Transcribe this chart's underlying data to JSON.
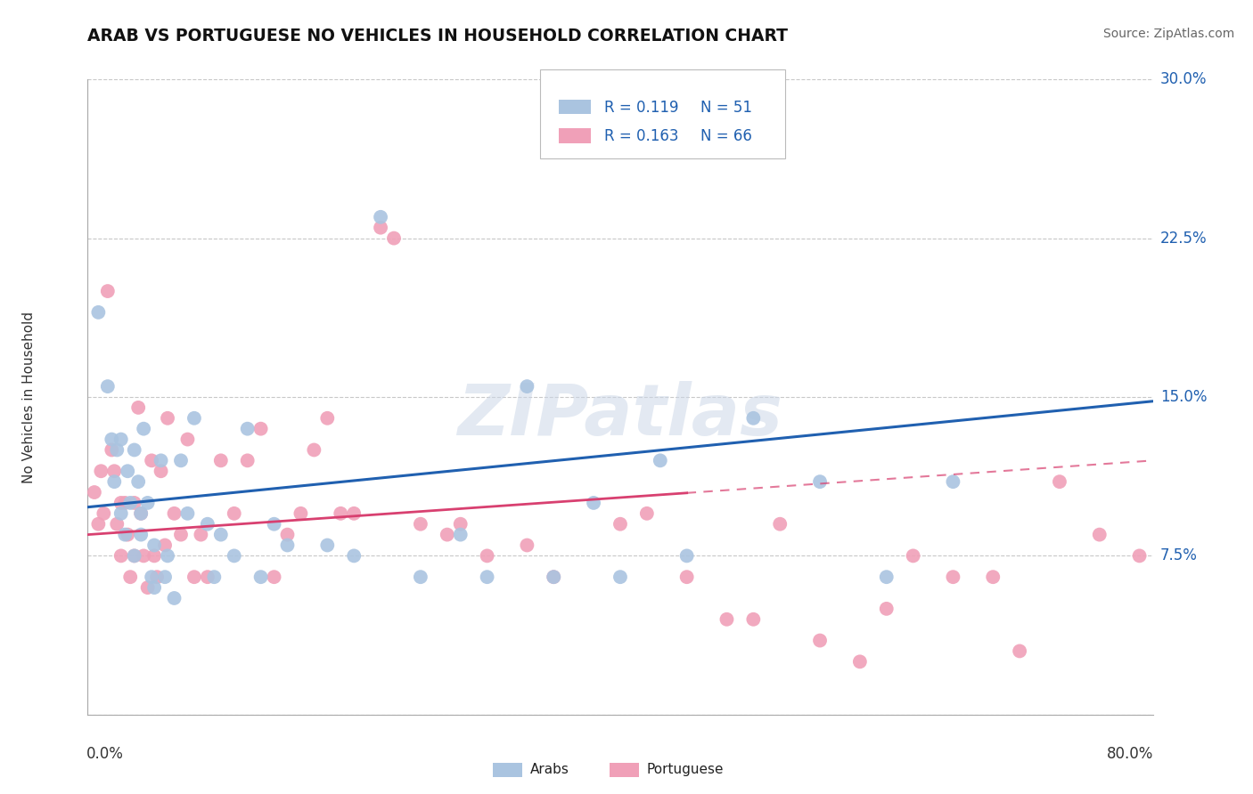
{
  "title": "ARAB VS PORTUGUESE NO VEHICLES IN HOUSEHOLD CORRELATION CHART",
  "source": "Source: ZipAtlas.com",
  "ylabel": "No Vehicles in Household",
  "xlabel_bottom_left": "0.0%",
  "xlabel_bottom_right": "80.0%",
  "xmin": 0.0,
  "xmax": 0.8,
  "ymin": 0.0,
  "ymax": 0.3,
  "yticks": [
    0.0,
    0.075,
    0.15,
    0.225,
    0.3
  ],
  "ytick_labels": [
    "",
    "7.5%",
    "15.0%",
    "22.5%",
    "30.0%"
  ],
  "legend_arab_R": "0.119",
  "legend_arab_N": "51",
  "legend_port_R": "0.163",
  "legend_port_N": "66",
  "arab_color": "#aac4e0",
  "port_color": "#f0a0b8",
  "arab_line_color": "#2060b0",
  "port_line_color": "#d84070",
  "watermark": "ZIPatlas",
  "background_color": "#ffffff",
  "grid_color": "#c8c8c8",
  "arab_x": [
    0.008,
    0.015,
    0.018,
    0.02,
    0.022,
    0.025,
    0.025,
    0.028,
    0.03,
    0.032,
    0.035,
    0.035,
    0.038,
    0.04,
    0.04,
    0.042,
    0.045,
    0.048,
    0.05,
    0.05,
    0.055,
    0.058,
    0.06,
    0.065,
    0.07,
    0.075,
    0.08,
    0.09,
    0.095,
    0.1,
    0.11,
    0.12,
    0.13,
    0.14,
    0.15,
    0.18,
    0.2,
    0.22,
    0.25,
    0.28,
    0.3,
    0.33,
    0.35,
    0.38,
    0.4,
    0.43,
    0.45,
    0.5,
    0.55,
    0.6,
    0.65
  ],
  "arab_y": [
    0.19,
    0.155,
    0.13,
    0.11,
    0.125,
    0.13,
    0.095,
    0.085,
    0.115,
    0.1,
    0.075,
    0.125,
    0.11,
    0.085,
    0.095,
    0.135,
    0.1,
    0.065,
    0.08,
    0.06,
    0.12,
    0.065,
    0.075,
    0.055,
    0.12,
    0.095,
    0.14,
    0.09,
    0.065,
    0.085,
    0.075,
    0.135,
    0.065,
    0.09,
    0.08,
    0.08,
    0.075,
    0.235,
    0.065,
    0.085,
    0.065,
    0.155,
    0.065,
    0.1,
    0.065,
    0.12,
    0.075,
    0.14,
    0.11,
    0.065,
    0.11
  ],
  "port_x": [
    0.005,
    0.008,
    0.01,
    0.012,
    0.015,
    0.018,
    0.02,
    0.022,
    0.025,
    0.025,
    0.028,
    0.03,
    0.032,
    0.035,
    0.035,
    0.038,
    0.04,
    0.042,
    0.045,
    0.048,
    0.05,
    0.052,
    0.055,
    0.058,
    0.06,
    0.065,
    0.07,
    0.075,
    0.08,
    0.085,
    0.09,
    0.1,
    0.11,
    0.12,
    0.13,
    0.14,
    0.15,
    0.16,
    0.17,
    0.18,
    0.19,
    0.2,
    0.22,
    0.23,
    0.25,
    0.27,
    0.28,
    0.3,
    0.33,
    0.35,
    0.4,
    0.42,
    0.45,
    0.48,
    0.5,
    0.52,
    0.55,
    0.58,
    0.6,
    0.62,
    0.65,
    0.68,
    0.7,
    0.73,
    0.76,
    0.79
  ],
  "port_y": [
    0.105,
    0.09,
    0.115,
    0.095,
    0.2,
    0.125,
    0.115,
    0.09,
    0.1,
    0.075,
    0.1,
    0.085,
    0.065,
    0.1,
    0.075,
    0.145,
    0.095,
    0.075,
    0.06,
    0.12,
    0.075,
    0.065,
    0.115,
    0.08,
    0.14,
    0.095,
    0.085,
    0.13,
    0.065,
    0.085,
    0.065,
    0.12,
    0.095,
    0.12,
    0.135,
    0.065,
    0.085,
    0.095,
    0.125,
    0.14,
    0.095,
    0.095,
    0.23,
    0.225,
    0.09,
    0.085,
    0.09,
    0.075,
    0.08,
    0.065,
    0.09,
    0.095,
    0.065,
    0.045,
    0.045,
    0.09,
    0.035,
    0.025,
    0.05,
    0.075,
    0.065,
    0.065,
    0.03,
    0.11,
    0.085,
    0.075
  ],
  "arab_line_y0": 0.098,
  "arab_line_y1": 0.148,
  "port_line_y0": 0.085,
  "port_line_y1": 0.12
}
